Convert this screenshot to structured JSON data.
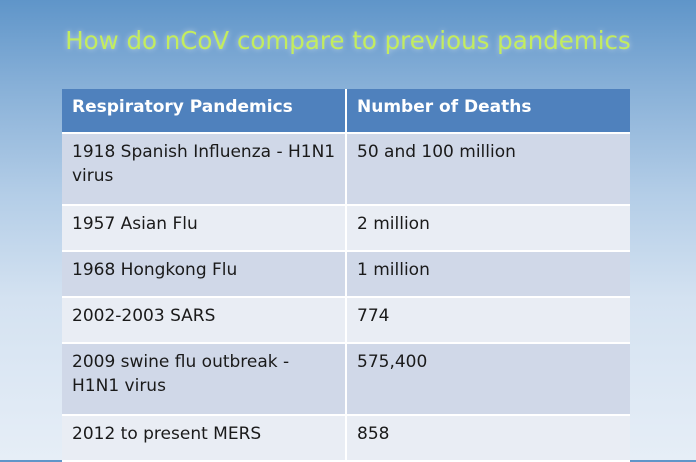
{
  "title": "How do nCoV compare to previous pandemics",
  "table": {
    "headers": [
      "Respiratory Pandemics",
      "Number of Deaths"
    ],
    "rows": [
      [
        "1918 Spanish Influenza - H1N1 virus",
        "50 and 100 million"
      ],
      [
        "1957 Asian Flu",
        "2 million"
      ],
      [
        "1968 Hongkong Flu",
        "1 million"
      ],
      [
        "2002-2003 SARS",
        "774"
      ],
      [
        "2009 swine flu outbreak - H1N1 virus",
        "575,400"
      ],
      [
        "2012 to present MERS",
        "858"
      ]
    ]
  },
  "colors": {
    "title": "#c3ec5e",
    "header_bg": "#4f81bd",
    "row_dark": "#d0d8e8",
    "row_light": "#e9edf4"
  }
}
